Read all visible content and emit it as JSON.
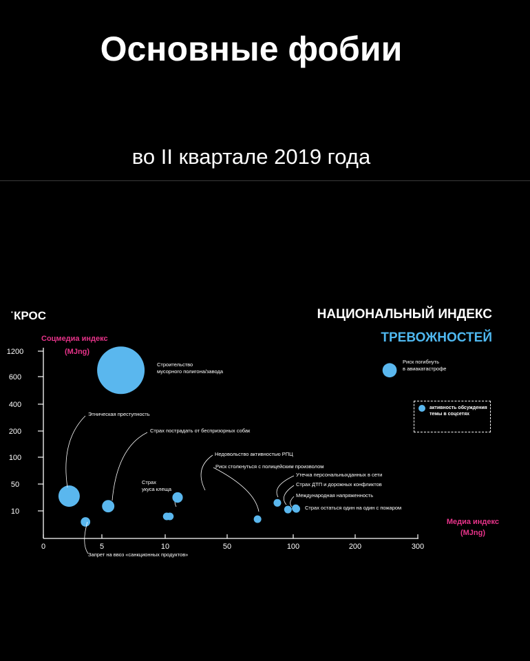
{
  "header": {
    "title": "Основные фобии",
    "subtitle": "во II квартале 2019 года"
  },
  "brand": "КРОС",
  "index_title": {
    "line1": "НАЦИОНАЛЬНЫЙ ИНДЕКС",
    "line2": "ТРЕВОЖНОСТЕЙ"
  },
  "legend": {
    "text": "активность обсуждения темы в соцсетях"
  },
  "chart_data": {
    "type": "scatter",
    "title": "НАЦИОНАЛЬНЫЙ ИНДЕКС ТРЕВОЖНОСТЕЙ",
    "xlabel": "Медиа индекс (MJng)",
    "ylabel": "Соцмедиа индекс (MJng)",
    "xlabel_lines": [
      "Медиа индекс",
      "(MJng)"
    ],
    "ylabel_lines": [
      "Соцмедиа индекс",
      "(MJng)"
    ],
    "x_ticks": [
      0,
      5,
      10,
      50,
      100,
      200,
      300
    ],
    "y_ticks": [
      10,
      50,
      100,
      200,
      400,
      600,
      1200
    ],
    "x_tick_labels": [
      "0",
      "5",
      "10",
      "50",
      "100",
      "200",
      "300"
    ],
    "y_tick_labels": [
      "10",
      "50",
      "100",
      "200",
      "400",
      "600",
      "1200"
    ],
    "xlim": [
      0,
      300
    ],
    "ylim": [
      0,
      1200
    ],
    "scale": "piecewise (uneven tick spacing)",
    "grid": false,
    "legend_position": "right",
    "point_color": "#5ab7ee",
    "label_color": "#ffffff",
    "accent_pink": "#e8338a",
    "accent_blue": "#4fb8f0",
    "points": [
      {
        "label": "Строительство мусорного полигона/завода",
        "label_lines": [
          "Строительство",
          "мусорного полигона/завода"
        ],
        "x": 6.5,
        "y": 750,
        "size": 100
      },
      {
        "label": "Этническая преступность",
        "label_lines": [
          "Этническая преступность"
        ],
        "x": 2.2,
        "y": 32,
        "size": 45
      },
      {
        "label": "Запрет на ввоз «санкционных продуктов»",
        "label_lines": [
          "Запрет на ввоз «санкционных продуктов»"
        ],
        "x": 3.6,
        "y": 6,
        "size": 20
      },
      {
        "label": "Страх пострадать от беспризорных собак",
        "label_lines": [
          "Страх пострадать от беспризорных собак"
        ],
        "x": 5.5,
        "y": 17,
        "size": 26
      },
      {
        "label": "Страх укуса клеща",
        "label_lines": [
          "Страх",
          "укуса клеща"
        ],
        "x": 11,
        "y": 8,
        "size": 16
      },
      {
        "label": "Страх укуса клеща",
        "label_lines": [],
        "x": 13,
        "y": 8,
        "size": 16
      },
      {
        "label": "Недовольство активностью РПЦ",
        "label_lines": [
          "Недовольство активностью РПЦ"
        ],
        "x": 18,
        "y": 30,
        "size": 22
      },
      {
        "label": "Риск столкнуться с полицейским произволом",
        "label_lines": [
          "Риск столкнуться с полицейским произволом"
        ],
        "x": 73,
        "y": 7,
        "size": 16
      },
      {
        "label": "Утечка персональныхданных в сети",
        "label_lines": [
          "Утечка персональныхданных в сети"
        ],
        "x": 88,
        "y": 22,
        "size": 16
      },
      {
        "label": "Страх ДТП и дорожных конфликтов",
        "label_lines": [
          "Страх ДТП и дорожных конфликтов"
        ],
        "x": 96,
        "y": 12,
        "size": 16
      },
      {
        "label": "Международная напряженность",
        "label_lines": [
          "Международная напряженность"
        ],
        "x": 104,
        "y": 14,
        "size": 16
      },
      {
        "label": "Страх остаться один на один с пожаром",
        "label_lines": [
          "Страх остаться один на один с пожаром"
        ],
        "x": 105,
        "y": 13,
        "size": 16
      },
      {
        "label": "Риск погибнуть в авиакатастрофе",
        "label_lines": [
          "Риск погибнуть",
          "в авиакатастрофе"
        ],
        "x": 255,
        "y": 750,
        "size": 30
      }
    ]
  }
}
